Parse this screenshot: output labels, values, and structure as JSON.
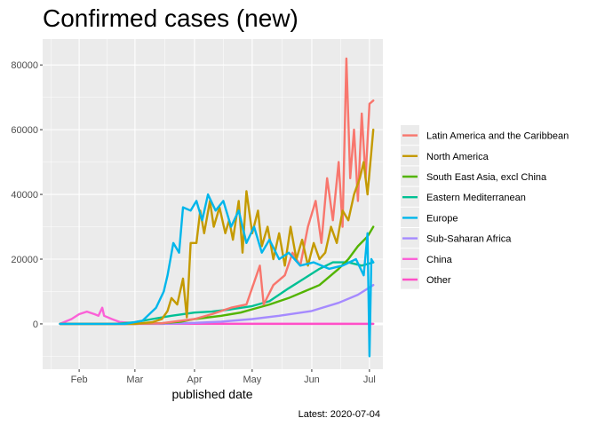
{
  "chart_data": {
    "type": "line",
    "title": "Confirmed cases (new)",
    "xlabel": "published date",
    "ylabel": "",
    "caption": "Latest: 2020-07-04",
    "x_range": [
      "2020-01-13",
      "2020-07-08"
    ],
    "ylim": [
      -14000,
      88000
    ],
    "x_ticks": [
      {
        "date": "2020-02-01",
        "label": "Feb"
      },
      {
        "date": "2020-03-01",
        "label": "Mar"
      },
      {
        "date": "2020-04-01",
        "label": "Apr"
      },
      {
        "date": "2020-05-01",
        "label": "May"
      },
      {
        "date": "2020-06-01",
        "label": "Jun"
      },
      {
        "date": "2020-07-01",
        "label": "Jul"
      }
    ],
    "y_ticks": [
      {
        "value": 0,
        "label": "0"
      },
      {
        "value": 20000,
        "label": "20000"
      },
      {
        "value": 40000,
        "label": "40000"
      },
      {
        "value": 60000,
        "label": "60000"
      },
      {
        "value": 80000,
        "label": "80000"
      }
    ],
    "grid": true,
    "legend_position": "right",
    "series": [
      {
        "name": "Latin America and the Caribbean",
        "color": "#F8766D",
        "points": [
          [
            "2020-01-22",
            0
          ],
          [
            "2020-03-01",
            0
          ],
          [
            "2020-03-15",
            200
          ],
          [
            "2020-03-25",
            1000
          ],
          [
            "2020-04-01",
            1500
          ],
          [
            "2020-04-10",
            3000
          ],
          [
            "2020-04-20",
            5000
          ],
          [
            "2020-04-28",
            6000
          ],
          [
            "2020-05-05",
            18000
          ],
          [
            "2020-05-07",
            6000
          ],
          [
            "2020-05-12",
            12000
          ],
          [
            "2020-05-18",
            15000
          ],
          [
            "2020-05-22",
            22000
          ],
          [
            "2020-05-26",
            18000
          ],
          [
            "2020-05-30",
            30000
          ],
          [
            "2020-06-03",
            38000
          ],
          [
            "2020-06-06",
            25000
          ],
          [
            "2020-06-09",
            45000
          ],
          [
            "2020-06-12",
            32000
          ],
          [
            "2020-06-15",
            50000
          ],
          [
            "2020-06-17",
            30000
          ],
          [
            "2020-06-19",
            82000
          ],
          [
            "2020-06-21",
            45000
          ],
          [
            "2020-06-23",
            60000
          ],
          [
            "2020-06-25",
            38000
          ],
          [
            "2020-06-27",
            65000
          ],
          [
            "2020-06-29",
            45000
          ],
          [
            "2020-07-01",
            68000
          ],
          [
            "2020-07-03",
            69000
          ]
        ]
      },
      {
        "name": "North America",
        "color": "#C49A00",
        "points": [
          [
            "2020-01-22",
            0
          ],
          [
            "2020-03-01",
            0
          ],
          [
            "2020-03-10",
            500
          ],
          [
            "2020-03-15",
            1500
          ],
          [
            "2020-03-18",
            4000
          ],
          [
            "2020-03-20",
            8000
          ],
          [
            "2020-03-23",
            6000
          ],
          [
            "2020-03-26",
            14000
          ],
          [
            "2020-03-28",
            2000
          ],
          [
            "2020-03-30",
            25000
          ],
          [
            "2020-04-02",
            25000
          ],
          [
            "2020-04-04",
            35000
          ],
          [
            "2020-04-06",
            28000
          ],
          [
            "2020-04-09",
            38000
          ],
          [
            "2020-04-11",
            30000
          ],
          [
            "2020-04-14",
            36000
          ],
          [
            "2020-04-17",
            28000
          ],
          [
            "2020-04-19",
            32000
          ],
          [
            "2020-04-21",
            26000
          ],
          [
            "2020-04-24",
            38000
          ],
          [
            "2020-04-26",
            22000
          ],
          [
            "2020-04-28",
            41000
          ],
          [
            "2020-05-01",
            28000
          ],
          [
            "2020-05-04",
            35000
          ],
          [
            "2020-05-06",
            24000
          ],
          [
            "2020-05-09",
            30000
          ],
          [
            "2020-05-12",
            20000
          ],
          [
            "2020-05-15",
            28000
          ],
          [
            "2020-05-18",
            18000
          ],
          [
            "2020-05-21",
            30000
          ],
          [
            "2020-05-24",
            20000
          ],
          [
            "2020-05-27",
            26000
          ],
          [
            "2020-05-30",
            18000
          ],
          [
            "2020-06-02",
            25000
          ],
          [
            "2020-06-05",
            20000
          ],
          [
            "2020-06-08",
            22000
          ],
          [
            "2020-06-11",
            30000
          ],
          [
            "2020-06-14",
            25000
          ],
          [
            "2020-06-17",
            35000
          ],
          [
            "2020-06-20",
            32000
          ],
          [
            "2020-06-23",
            40000
          ],
          [
            "2020-06-26",
            45000
          ],
          [
            "2020-06-28",
            50000
          ],
          [
            "2020-06-30",
            40000
          ],
          [
            "2020-07-03",
            60000
          ]
        ]
      },
      {
        "name": "South East Asia, excl China",
        "color": "#53B400",
        "points": [
          [
            "2020-01-22",
            0
          ],
          [
            "2020-03-01",
            0
          ],
          [
            "2020-03-15",
            200
          ],
          [
            "2020-03-25",
            700
          ],
          [
            "2020-04-01",
            1500
          ],
          [
            "2020-04-15",
            2500
          ],
          [
            "2020-04-25",
            3500
          ],
          [
            "2020-05-01",
            4500
          ],
          [
            "2020-05-10",
            6000
          ],
          [
            "2020-05-20",
            8000
          ],
          [
            "2020-05-28",
            10000
          ],
          [
            "2020-06-05",
            12000
          ],
          [
            "2020-06-15",
            17000
          ],
          [
            "2020-06-20",
            20000
          ],
          [
            "2020-06-25",
            24000
          ],
          [
            "2020-06-30",
            27000
          ],
          [
            "2020-07-03",
            30000
          ]
        ]
      },
      {
        "name": "Eastern Mediterranean",
        "color": "#00C094",
        "points": [
          [
            "2020-01-22",
            0
          ],
          [
            "2020-02-20",
            0
          ],
          [
            "2020-03-01",
            500
          ],
          [
            "2020-03-10",
            1500
          ],
          [
            "2020-03-20",
            2500
          ],
          [
            "2020-04-01",
            3500
          ],
          [
            "2020-04-10",
            3800
          ],
          [
            "2020-04-20",
            4500
          ],
          [
            "2020-05-01",
            5500
          ],
          [
            "2020-05-10",
            7000
          ],
          [
            "2020-05-20",
            11000
          ],
          [
            "2020-05-28",
            14000
          ],
          [
            "2020-06-05",
            17000
          ],
          [
            "2020-06-12",
            19000
          ],
          [
            "2020-06-20",
            19000
          ],
          [
            "2020-06-27",
            18000
          ],
          [
            "2020-07-03",
            19000
          ]
        ]
      },
      {
        "name": "Europe",
        "color": "#00B6EB",
        "points": [
          [
            "2020-01-22",
            0
          ],
          [
            "2020-02-25",
            0
          ],
          [
            "2020-03-05",
            1000
          ],
          [
            "2020-03-12",
            5000
          ],
          [
            "2020-03-16",
            10000
          ],
          [
            "2020-03-18",
            15000
          ],
          [
            "2020-03-21",
            25000
          ],
          [
            "2020-03-24",
            22000
          ],
          [
            "2020-03-26",
            36000
          ],
          [
            "2020-03-30",
            35000
          ],
          [
            "2020-04-02",
            38000
          ],
          [
            "2020-04-05",
            32000
          ],
          [
            "2020-04-08",
            40000
          ],
          [
            "2020-04-12",
            35000
          ],
          [
            "2020-04-16",
            38000
          ],
          [
            "2020-04-20",
            30000
          ],
          [
            "2020-04-24",
            35000
          ],
          [
            "2020-04-28",
            25000
          ],
          [
            "2020-05-02",
            30000
          ],
          [
            "2020-05-06",
            22000
          ],
          [
            "2020-05-10",
            26000
          ],
          [
            "2020-05-15",
            20000
          ],
          [
            "2020-05-20",
            22000
          ],
          [
            "2020-05-26",
            18000
          ],
          [
            "2020-06-02",
            19000
          ],
          [
            "2020-06-10",
            17000
          ],
          [
            "2020-06-17",
            18000
          ],
          [
            "2020-06-24",
            20000
          ],
          [
            "2020-06-28",
            15000
          ],
          [
            "2020-06-30",
            28000
          ],
          [
            "2020-07-01",
            -10000
          ],
          [
            "2020-07-02",
            20000
          ],
          [
            "2020-07-03",
            19000
          ]
        ]
      },
      {
        "name": "Sub-Saharan Africa",
        "color": "#A58AFF",
        "points": [
          [
            "2020-01-22",
            0
          ],
          [
            "2020-03-15",
            0
          ],
          [
            "2020-04-01",
            300
          ],
          [
            "2020-04-15",
            700
          ],
          [
            "2020-05-01",
            1500
          ],
          [
            "2020-05-15",
            2500
          ],
          [
            "2020-06-01",
            4000
          ],
          [
            "2020-06-15",
            6500
          ],
          [
            "2020-06-25",
            9000
          ],
          [
            "2020-07-03",
            12000
          ]
        ]
      },
      {
        "name": "China",
        "color": "#FB61D7",
        "points": [
          [
            "2020-01-22",
            0
          ],
          [
            "2020-01-28",
            1500
          ],
          [
            "2020-02-01",
            3000
          ],
          [
            "2020-02-05",
            3800
          ],
          [
            "2020-02-09",
            3000
          ],
          [
            "2020-02-11",
            2500
          ],
          [
            "2020-02-13",
            5000
          ],
          [
            "2020-02-14",
            2500
          ],
          [
            "2020-02-18",
            1500
          ],
          [
            "2020-02-22",
            600
          ],
          [
            "2020-03-01",
            200
          ],
          [
            "2020-03-15",
            50
          ],
          [
            "2020-07-03",
            10
          ]
        ]
      },
      {
        "name": "Other",
        "color": "#FF4FC7",
        "points": [
          [
            "2020-01-22",
            0
          ],
          [
            "2020-07-03",
            0
          ]
        ]
      }
    ],
    "draw_order": [
      "China",
      "Other",
      "Sub-Saharan Africa",
      "Eastern Mediterranean",
      "South East Asia, excl China",
      "Latin America and the Caribbean",
      "North America",
      "Europe"
    ]
  }
}
